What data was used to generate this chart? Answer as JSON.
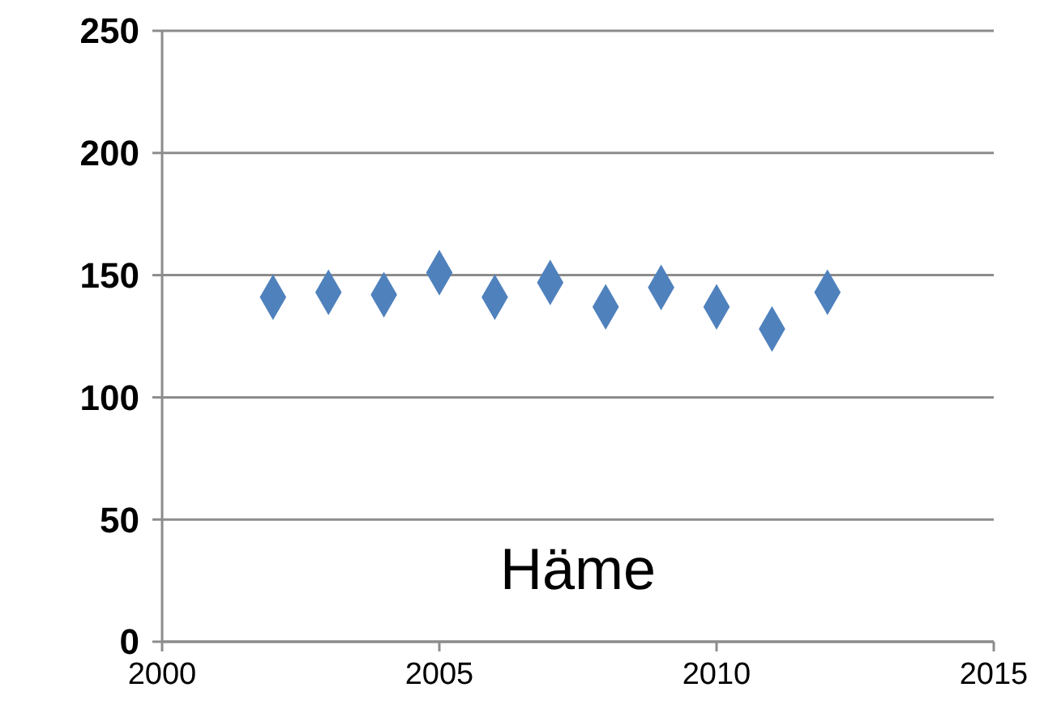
{
  "chart_data": {
    "type": "scatter",
    "x": [
      2002,
      2003,
      2004,
      2005,
      2006,
      2007,
      2008,
      2009,
      2010,
      2011,
      2012
    ],
    "series": [
      {
        "color": "#4f81bd",
        "values": [
          141,
          143,
          142,
          151,
          141,
          147,
          137,
          145,
          137,
          128,
          143
        ]
      }
    ],
    "xlim": [
      2000,
      2015
    ],
    "xticks": [
      2000,
      2005,
      2010,
      2015
    ],
    "ylim": [
      0,
      250
    ],
    "yticks": [
      0,
      50,
      100,
      150,
      200,
      250
    ],
    "grid": "y",
    "marker": "diamond",
    "annotations": [
      "Häme"
    ]
  }
}
